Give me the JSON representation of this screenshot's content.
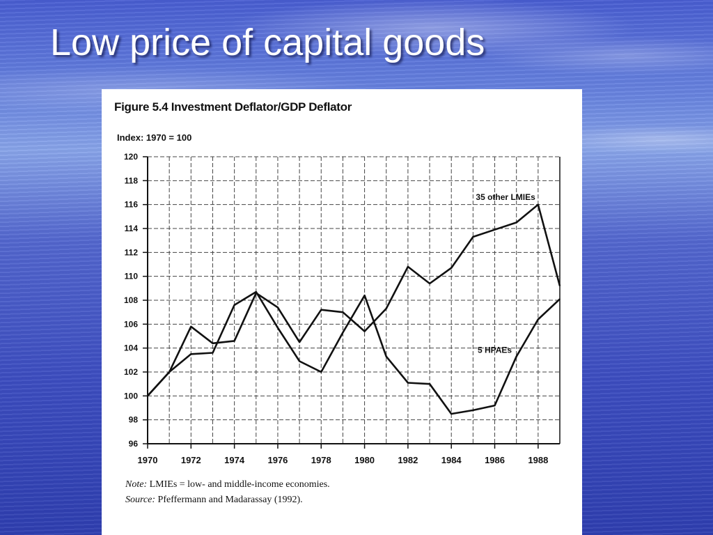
{
  "slide": {
    "title": "Low price of capital goods"
  },
  "figure": {
    "title": "Figure 5.4  Investment Deflator/GDP Deflator",
    "note_label": "Note:",
    "note_text": " LMIEs = low- and middle-income economies.",
    "source_label": "Source:",
    "source_text": " Pfeffermann and Madarassay (1992)."
  },
  "chart_data": {
    "type": "line",
    "title": "Figure 5.4  Investment Deflator/GDP Deflator",
    "ylabel": "Index: 1970 = 100",
    "xlabel": "",
    "ylim": [
      96,
      120
    ],
    "xlim": [
      1970,
      1989
    ],
    "y_ticks": [
      96,
      98,
      100,
      102,
      104,
      106,
      108,
      110,
      112,
      114,
      116,
      118,
      120
    ],
    "x_tick_labels": [
      1970,
      1972,
      1974,
      1976,
      1978,
      1980,
      1982,
      1984,
      1986,
      1988
    ],
    "grid": true,
    "x": [
      1970,
      1971,
      1972,
      1973,
      1974,
      1975,
      1976,
      1977,
      1978,
      1979,
      1980,
      1981,
      1982,
      1983,
      1984,
      1985,
      1986,
      1987,
      1988,
      1989
    ],
    "series": [
      {
        "name": "35 other LMIEs",
        "values": [
          100,
          102,
          105.8,
          104.4,
          104.6,
          108.6,
          107.4,
          104.5,
          107.2,
          107.0,
          105.4,
          107.3,
          110.8,
          109.4,
          110.7,
          113.3,
          113.9,
          114.5,
          116.0,
          109.2
        ]
      },
      {
        "name": "5 HPAEs",
        "values": [
          100,
          102,
          103.5,
          103.6,
          107.6,
          108.7,
          105.7,
          102.9,
          102.0,
          105.3,
          108.4,
          103.3,
          101.1,
          101.0,
          98.5,
          98.8,
          99.2,
          103.3,
          106.4,
          108.1
        ]
      }
    ]
  }
}
